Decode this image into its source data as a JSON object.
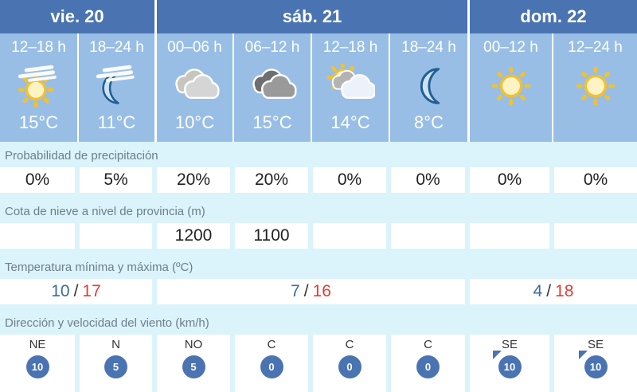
{
  "colors": {
    "header_blue": "#4a73b2",
    "period_blue": "#99bee6",
    "section_background": "#dbf3fb",
    "label_text": "#6e7f8a",
    "value_text": "#222222",
    "temp_min_blue": "#3a6ca5",
    "temp_max_red": "#e53b32",
    "wind_badge_blue": "#4a73b2",
    "sun_gold": "#f2c12e",
    "moon_blue": "#205e94"
  },
  "days": [
    {
      "label": "vie. 20"
    },
    {
      "label": "sáb. 21"
    },
    {
      "label": "dom. 22"
    }
  ],
  "periods": [
    {
      "time": "12–18 h",
      "icon": "sun-haze",
      "temp": "15°C"
    },
    {
      "time": "18–24 h",
      "icon": "moon-haze",
      "temp": "11°C"
    },
    {
      "time": "00–06 h",
      "icon": "clouds-light",
      "temp": "10°C"
    },
    {
      "time": "06–12 h",
      "icon": "clouds-dark",
      "temp": "15°C"
    },
    {
      "time": "12–18 h",
      "icon": "sun-clouds",
      "temp": "14°C"
    },
    {
      "time": "18–24 h",
      "icon": "moon",
      "temp": "8°C"
    },
    {
      "time": "00–12 h",
      "icon": "sun",
      "temp": ""
    },
    {
      "time": "12–24 h",
      "icon": "sun",
      "temp": ""
    }
  ],
  "precipitation": {
    "label": "Probabilidad de precipitación",
    "values": [
      "0%",
      "5%",
      "20%",
      "20%",
      "0%",
      "0%",
      "0%",
      "0%"
    ]
  },
  "snow_level": {
    "label": "Cota de nieve a nivel de provincia (m)",
    "values": [
      "",
      "",
      "1200",
      "1100",
      "",
      "",
      "",
      ""
    ]
  },
  "temperature": {
    "label": "Temperatura mínima y máxima (ºC)",
    "groups": [
      {
        "min": "10",
        "sep": "/",
        "max": "17"
      },
      {
        "min": "7",
        "sep": "/",
        "max": "16"
      },
      {
        "min": "4",
        "sep": "/",
        "max": "18"
      }
    ]
  },
  "wind": {
    "label": "Dirección y velocidad del viento (km/h)",
    "cells": [
      {
        "dir": "NE",
        "speed": "10",
        "arrow": false
      },
      {
        "dir": "N",
        "speed": "5",
        "arrow": false
      },
      {
        "dir": "NO",
        "speed": "5",
        "arrow": false
      },
      {
        "dir": "C",
        "speed": "0",
        "arrow": false
      },
      {
        "dir": "C",
        "speed": "0",
        "arrow": false
      },
      {
        "dir": "C",
        "speed": "0",
        "arrow": false
      },
      {
        "dir": "SE",
        "speed": "10",
        "arrow": true
      },
      {
        "dir": "SE",
        "speed": "10",
        "arrow": true
      }
    ]
  }
}
